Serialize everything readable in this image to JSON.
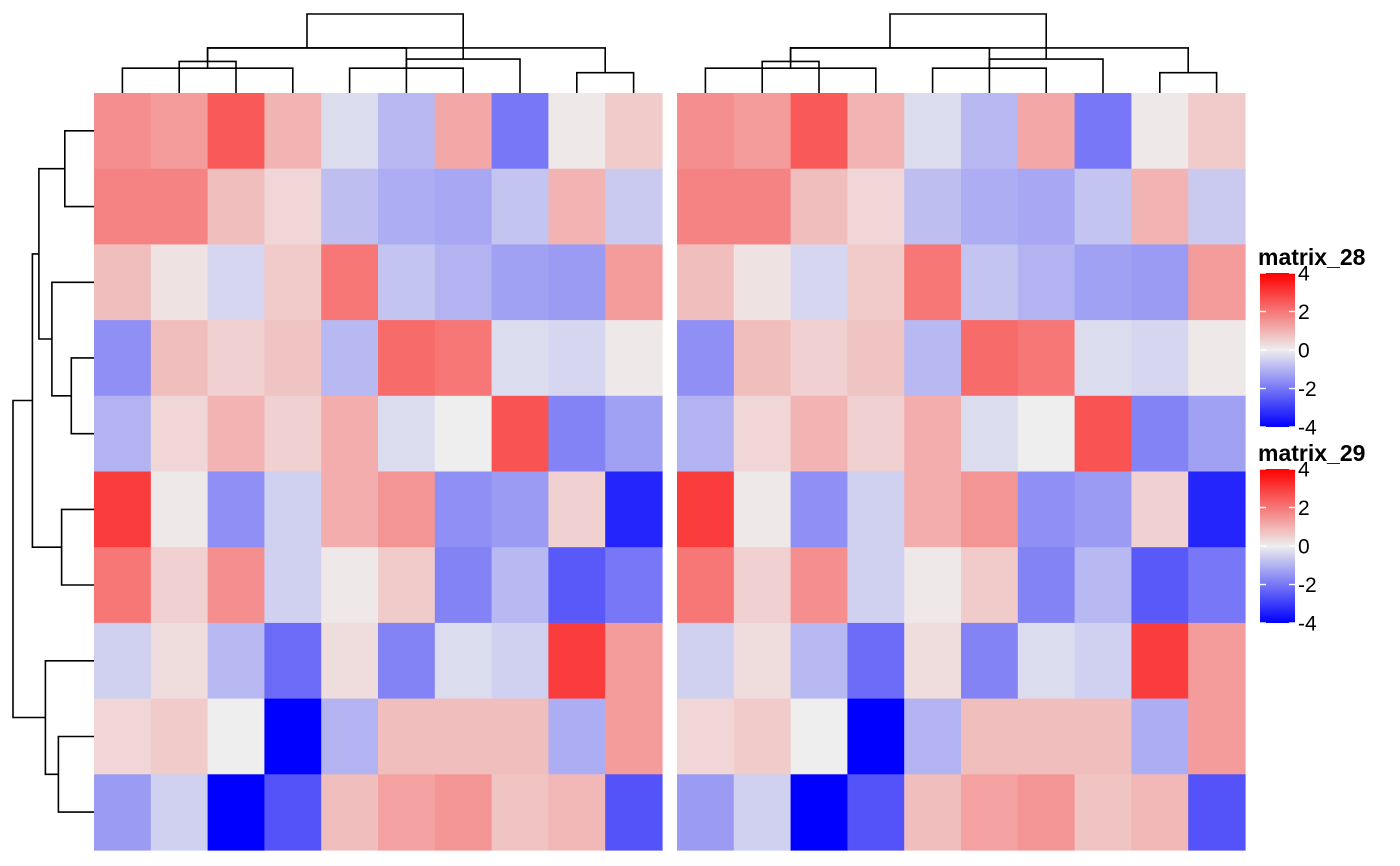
{
  "chart_data": {
    "type": "heatmap",
    "title": "",
    "xlabel": "",
    "ylabel": "",
    "grid": false,
    "heatmaps": [
      {
        "name": "matrix_28"
      },
      {
        "name": "matrix_29"
      }
    ],
    "values": [
      [
        1.6,
        1.4,
        2.5,
        1.0,
        -0.3,
        -0.9,
        1.2,
        -2.0,
        0.1,
        0.6
      ],
      [
        1.8,
        1.8,
        0.8,
        0.4,
        -0.8,
        -1.1,
        -1.2,
        -0.7,
        1.0,
        -0.6
      ],
      [
        0.8,
        0.2,
        -0.4,
        0.6,
        2.0,
        -0.7,
        -1.0,
        -1.3,
        -1.4,
        1.4
      ],
      [
        -1.6,
        0.8,
        0.5,
        0.7,
        -0.9,
        2.2,
        2.0,
        -0.3,
        -0.4,
        0.1
      ],
      [
        -1.0,
        0.4,
        1.0,
        0.5,
        1.1,
        -0.3,
        0.0,
        2.6,
        -1.8,
        -1.3
      ],
      [
        3.0,
        0.1,
        -1.6,
        -0.5,
        1.1,
        1.5,
        -1.6,
        -1.4,
        0.5,
        -3.4
      ],
      [
        2.0,
        0.5,
        1.6,
        -0.5,
        0.1,
        0.6,
        -1.8,
        -0.9,
        -2.5,
        -2.0
      ],
      [
        -0.5,
        0.3,
        -0.9,
        -2.2,
        0.3,
        -1.8,
        -0.3,
        -0.5,
        3.0,
        1.4
      ],
      [
        0.4,
        0.6,
        0.0,
        -4.0,
        -1.0,
        0.8,
        0.8,
        0.8,
        -1.1,
        1.4
      ],
      [
        -1.4,
        -0.5,
        -4.0,
        -2.6,
        0.8,
        1.3,
        1.5,
        0.7,
        0.9,
        -2.6
      ]
    ],
    "color_scale": {
      "domain": [
        -4,
        0,
        4
      ],
      "colors": [
        "#0000ff",
        "#eeeeee",
        "#ff0000"
      ],
      "ticks": [
        "4",
        "2",
        "0",
        "-2",
        "-4"
      ],
      "tick_values": [
        4,
        2,
        0,
        -2,
        -4
      ]
    },
    "column_dendrogram": [
      {
        "a": 0,
        "b": 3,
        "h": 0.55
      },
      {
        "a": 2,
        "b": 1,
        "h": 0.7
      },
      {
        "a": 4,
        "b": 6,
        "h": 0.55
      },
      {
        "a": 8,
        "b": 9,
        "h": 0.45
      },
      {
        "a": 5,
        "b": 7,
        "h": 0.75
      },
      {
        "a": 10,
        "b": 12,
        "h": 1.0
      },
      {
        "a": 11,
        "b": 13,
        "h": 1.0
      },
      {
        "a": 14,
        "b": 15,
        "h": 1.75
      }
    ],
    "row_dendrogram": [
      {
        "a": 0,
        "b": 1,
        "h": 0.45
      },
      {
        "a": 3,
        "b": 4,
        "h": 0.35
      },
      {
        "a": 5,
        "b": 6,
        "h": 0.5
      },
      {
        "a": 8,
        "b": 9,
        "h": 0.55
      },
      {
        "a": 2,
        "b": 11,
        "h": 0.65
      },
      {
        "a": 7,
        "b": 13,
        "h": 0.75
      },
      {
        "a": 10,
        "b": 14,
        "h": 0.85
      },
      {
        "a": 12,
        "b": 16,
        "h": 0.95
      },
      {
        "a": 15,
        "b": 17,
        "h": 1.25
      }
    ]
  }
}
